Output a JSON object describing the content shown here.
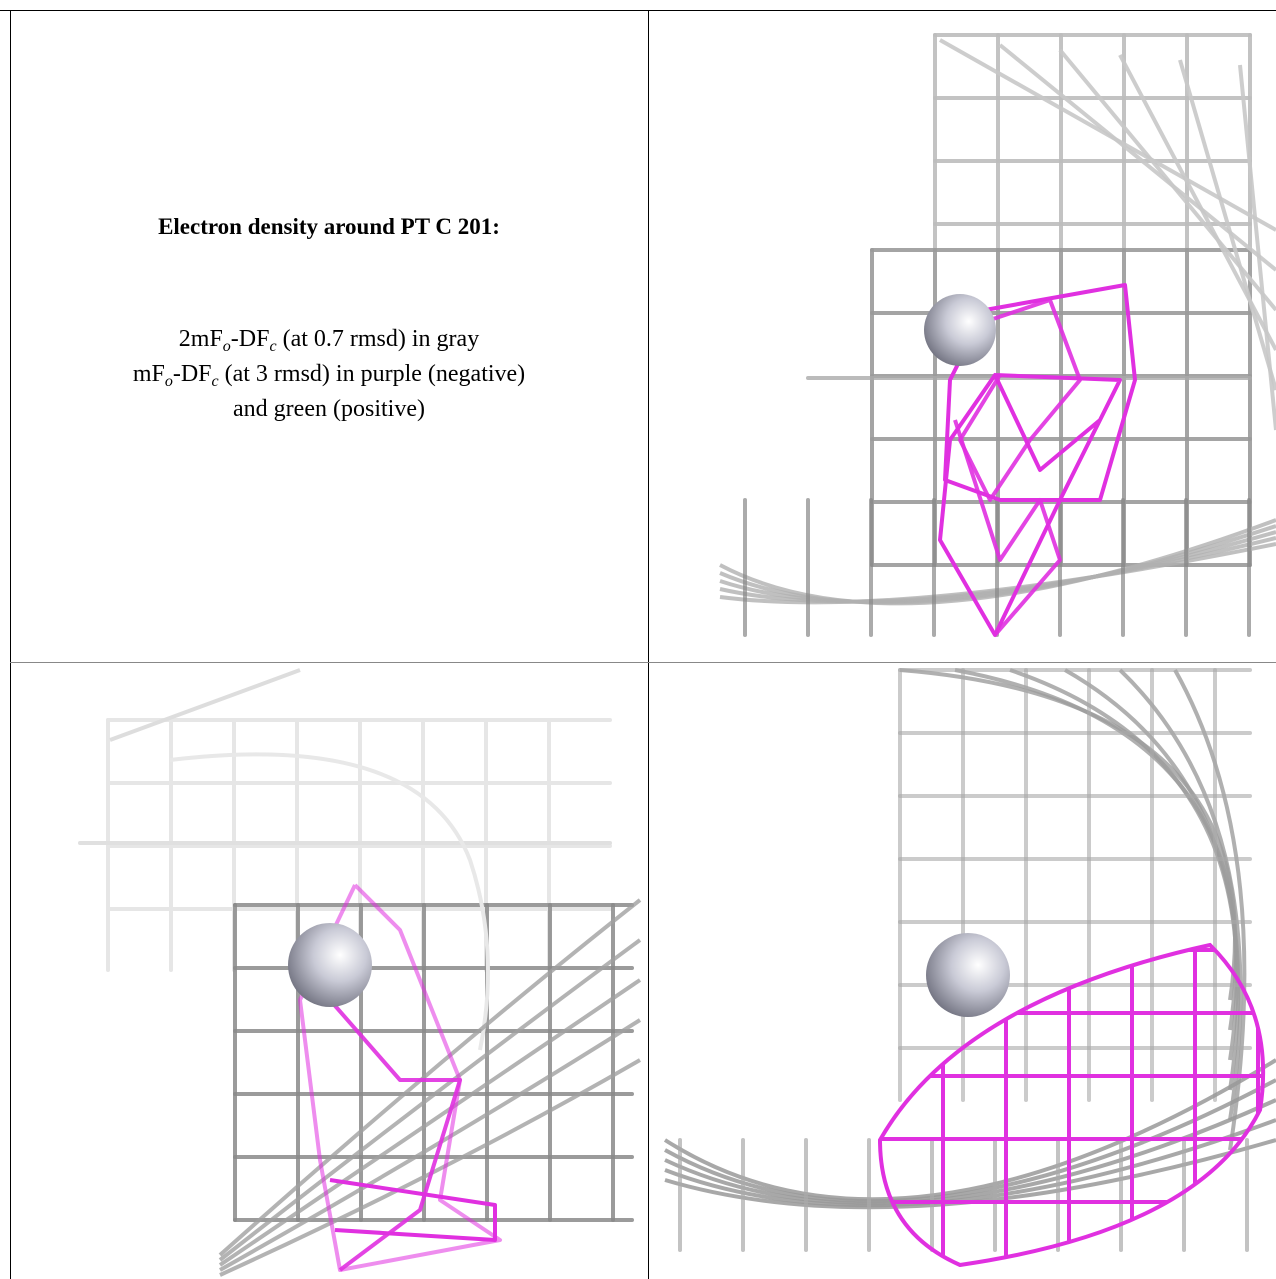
{
  "heading": "Electron density around PT C 201:",
  "legend": {
    "lines": [
      [
        "2mF",
        "o",
        "-DF",
        "c",
        " (at 0.7 rmsd) in gray"
      ],
      [
        "mF",
        "o",
        "-DF",
        "c",
        " (at 3 rmsd) in purple (negative)"
      ],
      [
        "and green (positive)"
      ]
    ]
  }
}
